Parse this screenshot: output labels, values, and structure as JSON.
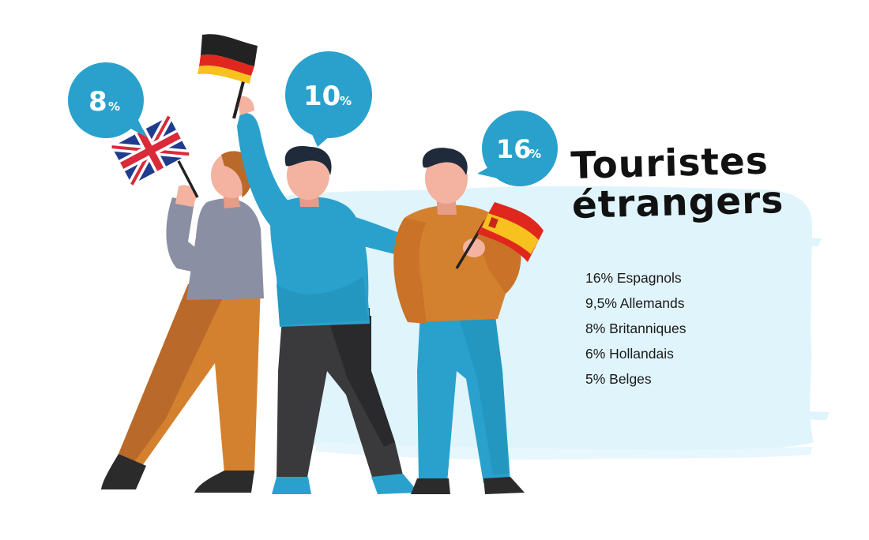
{
  "title": {
    "line1": "Touristes",
    "line2": "étrangers"
  },
  "bubbles": [
    {
      "number": "8",
      "unit": "%"
    },
    {
      "number": "10",
      "unit": "%"
    },
    {
      "number": "16",
      "unit": "%"
    }
  ],
  "stats": [
    "16% Espagnols",
    "9,5% Allemands",
    "8% Britanniques",
    "6% Hollandais",
    "5% Belges"
  ],
  "colors": {
    "bubble": "#2aa1cc",
    "brush_background": "#e0f4fc",
    "shirt_blue": "#2aa1cc",
    "shirt_orange": "#d4812f",
    "shirt_grey": "#8b8fa3",
    "skin": "#f3b3a0",
    "hair": "#1f2a3a"
  },
  "icons": [
    "uk-flag-icon",
    "germany-flag-icon",
    "spain-flag-icon"
  ]
}
